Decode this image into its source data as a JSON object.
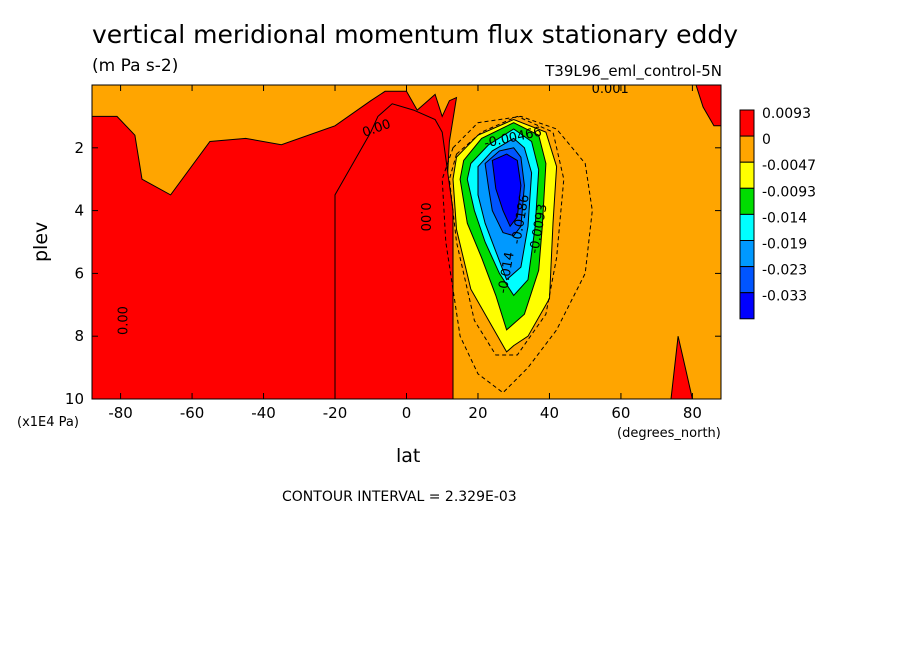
{
  "chart_data": {
    "type": "heatmap",
    "title": "vertical meridional momentum flux stationary eddy",
    "units": "(m Pa s-2)",
    "run_label": "T39L96_eml_control-5N",
    "xlabel": "lat",
    "xunit": "(degrees_north)",
    "ylabel": "plev",
    "yunit": "(x1E4 Pa)",
    "contour_note": "CONTOUR INTERVAL = 2.329E-03",
    "xlim": [
      -88,
      88
    ],
    "ylim": [
      10,
      0
    ],
    "x_ticks": [
      -80,
      -60,
      -40,
      -20,
      0,
      20,
      40,
      60,
      80
    ],
    "y_ticks": [
      2,
      4,
      6,
      8,
      10
    ],
    "legend": {
      "placement": "right",
      "levels": [
        {
          "label": "0.0093",
          "color": "#ff0000"
        },
        {
          "label": "0",
          "color": "#ffa500"
        },
        {
          "label": "-0.0047",
          "color": "#ffff00"
        },
        {
          "label": "-0.0093",
          "color": "#00dd00"
        },
        {
          "label": "-0.014",
          "color": "#00ffff"
        },
        {
          "label": "-0.019",
          "color": "#0099ff"
        },
        {
          "label": "-0.023",
          "color": "#0055ff"
        },
        {
          "label": "-0.033",
          "color": "#0000ff"
        }
      ]
    },
    "regions": [
      {
        "name": "red-sh-north-sh",
        "color": "#ff0000",
        "points": [
          [
            -88,
            10
          ],
          [
            -88,
            1
          ],
          [
            -81,
            1
          ],
          [
            -76,
            1.6
          ],
          [
            -74,
            3
          ],
          [
            -66,
            3.5
          ],
          [
            -55,
            1.8
          ],
          [
            -45,
            1.7
          ],
          [
            -35,
            1.9
          ],
          [
            -20,
            1.3
          ],
          [
            -10,
            0.5
          ],
          [
            -6,
            0.2
          ],
          [
            0,
            0.2
          ],
          [
            3,
            0.8
          ],
          [
            6,
            0.5
          ],
          [
            8,
            0.3
          ],
          [
            10,
            1
          ],
          [
            12,
            0.5
          ],
          [
            14,
            0.4
          ],
          [
            12,
            1.8
          ],
          [
            10,
            6
          ],
          [
            10,
            10
          ]
        ]
      },
      {
        "name": "red-tropics",
        "color": "#ff0000",
        "points": [
          [
            -20,
            3.5
          ],
          [
            -10,
            1.5
          ],
          [
            -8,
            1
          ],
          [
            -4,
            0.6
          ],
          [
            2,
            0.8
          ],
          [
            8,
            1.1
          ],
          [
            10,
            1.5
          ],
          [
            13,
            4
          ],
          [
            13,
            10
          ],
          [
            -20,
            10
          ]
        ]
      },
      {
        "name": "red-np-corner",
        "color": "#ff0000",
        "points": [
          [
            81,
            0
          ],
          [
            88,
            0
          ],
          [
            88,
            1.3
          ],
          [
            86,
            1.3
          ],
          [
            83,
            0.7
          ]
        ]
      },
      {
        "name": "red-north-spike",
        "color": "#ff0000",
        "points": [
          [
            74,
            10
          ],
          [
            76,
            8
          ],
          [
            78,
            9
          ],
          [
            80,
            10
          ]
        ]
      },
      {
        "name": "yellow-main",
        "color": "#ffff00",
        "points": [
          [
            14,
            2.3
          ],
          [
            20,
            1.6
          ],
          [
            30,
            1.1
          ],
          [
            39,
            1.5
          ],
          [
            42,
            2.6
          ],
          [
            41,
            4.4
          ],
          [
            40,
            6.8
          ],
          [
            34,
            8
          ],
          [
            30,
            8.3
          ],
          [
            28,
            8.5
          ],
          [
            23,
            7.5
          ],
          [
            18,
            6.5
          ],
          [
            14,
            4.6
          ],
          [
            13,
            3
          ]
        ]
      },
      {
        "name": "green",
        "color": "#00dd00",
        "points": [
          [
            16,
            2.4
          ],
          [
            21,
            1.7
          ],
          [
            30,
            1.2
          ],
          [
            37,
            1.6
          ],
          [
            39,
            2.5
          ],
          [
            38,
            4.5
          ],
          [
            37,
            5.9
          ],
          [
            33,
            7.3
          ],
          [
            28,
            7.8
          ],
          [
            25,
            6.7
          ],
          [
            21,
            5.5
          ],
          [
            17,
            4.4
          ],
          [
            15,
            3
          ]
        ]
      },
      {
        "name": "cyan",
        "color": "#00ffff",
        "points": [
          [
            18,
            2.5
          ],
          [
            23,
            1.9
          ],
          [
            30,
            1.4
          ],
          [
            35,
            1.8
          ],
          [
            37,
            2.7
          ],
          [
            36,
            4.5
          ],
          [
            34,
            6.2
          ],
          [
            30,
            6.7
          ],
          [
            26,
            6
          ],
          [
            22,
            5
          ],
          [
            19,
            4
          ],
          [
            17,
            3
          ]
        ]
      },
      {
        "name": "blue-mid",
        "color": "#0099ff",
        "points": [
          [
            20,
            2.6
          ],
          [
            24,
            2.1
          ],
          [
            30,
            1.7
          ],
          [
            33,
            2
          ],
          [
            35,
            2.8
          ],
          [
            34,
            4.5
          ],
          [
            32,
            5.8
          ],
          [
            28,
            6.2
          ],
          [
            25,
            5.3
          ],
          [
            22,
            4.4
          ],
          [
            20,
            3.5
          ]
        ]
      },
      {
        "name": "blue-dark",
        "color": "#0055ff",
        "points": [
          [
            22,
            2.5
          ],
          [
            26,
            2.1
          ],
          [
            30,
            2
          ],
          [
            32,
            2.3
          ],
          [
            33,
            3.2
          ],
          [
            32,
            4.5
          ],
          [
            30,
            4.8
          ],
          [
            27,
            4.7
          ],
          [
            24,
            4
          ],
          [
            23,
            3.3
          ]
        ]
      },
      {
        "name": "blue-core",
        "color": "#0000ff",
        "points": [
          [
            24,
            2.4
          ],
          [
            28,
            2.2
          ],
          [
            31,
            2.4
          ],
          [
            32,
            3.2
          ],
          [
            31,
            4.2
          ],
          [
            29,
            4.5
          ],
          [
            27,
            4
          ],
          [
            25,
            3.3
          ]
        ]
      }
    ],
    "dashed_contours": [
      {
        "name": "outer",
        "points": [
          [
            13,
            2
          ],
          [
            20,
            1.2
          ],
          [
            32,
            1
          ],
          [
            42,
            1.4
          ],
          [
            50,
            2.5
          ],
          [
            52,
            4
          ],
          [
            50,
            6
          ],
          [
            42,
            7.8
          ],
          [
            34,
            9
          ],
          [
            27,
            9.8
          ],
          [
            20,
            9.2
          ],
          [
            15,
            8
          ],
          [
            11,
            5
          ],
          [
            10,
            3
          ]
        ]
      },
      {
        "name": "mid",
        "points": [
          [
            14,
            2.2
          ],
          [
            21,
            1.5
          ],
          [
            31,
            1
          ],
          [
            41,
            1.5
          ],
          [
            44,
            3
          ],
          [
            42,
            5.5
          ],
          [
            39,
            7.3
          ],
          [
            31,
            8.6
          ],
          [
            25,
            8.6
          ],
          [
            19,
            7.5
          ],
          [
            14,
            5
          ],
          [
            12,
            3
          ]
        ]
      }
    ],
    "contour_labels": [
      {
        "text": "0.00",
        "x": -78,
        "y": 7.5,
        "rotate": -90
      },
      {
        "text": "0.00",
        "x": 4,
        "y": 4.2,
        "rotate": 90
      },
      {
        "text": "0.00",
        "x": -8,
        "y": 1.5,
        "rotate": -20
      },
      {
        "text": "0.001",
        "x": 57,
        "y": 0.25,
        "rotate": 0
      },
      {
        "text": "-0.00466",
        "x": 30,
        "y": 1.8,
        "rotate": -12
      },
      {
        "text": "-0.0186",
        "x": 33,
        "y": 4.3,
        "rotate": -80
      },
      {
        "text": "-0.0093",
        "x": 38,
        "y": 4.6,
        "rotate": -80
      },
      {
        "text": "-0.014",
        "x": 29,
        "y": 6,
        "rotate": -80
      }
    ]
  }
}
